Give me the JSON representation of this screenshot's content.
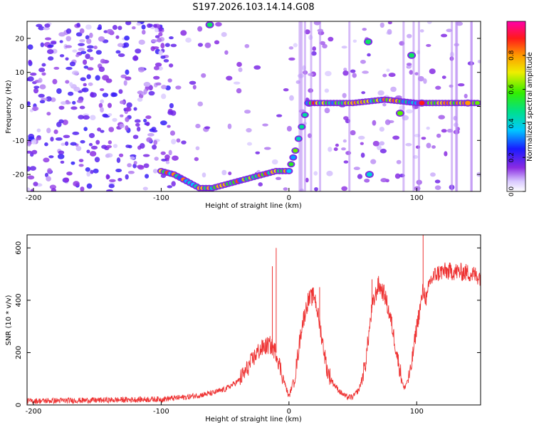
{
  "figure": {
    "title": "S197.2026.103.14.14.G08"
  },
  "chart_data": [
    {
      "type": "heatmap",
      "title": "S197.2026.103.14.14.G08",
      "xlabel": "Height of straight line (km)",
      "ylabel": "Frequency (Hz)",
      "xlim": [
        -205,
        150
      ],
      "ylim": [
        -25,
        25
      ],
      "xticks": [
        -200,
        -100,
        0,
        100
      ],
      "yticks": [
        -20,
        -10,
        0,
        10,
        20
      ],
      "colorbar": {
        "label": "Normalized spectral amplitude",
        "range": [
          0,
          1
        ],
        "ticks": [
          0.0,
          0.2,
          0.4,
          0.6,
          0.8
        ],
        "colormap": "rainbow (white → violet → blue → cyan → green → yellow → orange → red → magenta)"
      },
      "background": "noise speckle, stronger for heights below -90 km, sparse between -85 and 0 km",
      "ridge_frequency": [
        {
          "x": -100,
          "y": -19
        },
        {
          "x": -90,
          "y": -20
        },
        {
          "x": -80,
          "y": -22
        },
        {
          "x": -70,
          "y": -24
        },
        {
          "x": -60,
          "y": -24
        },
        {
          "x": -50,
          "y": -23
        },
        {
          "x": -40,
          "y": -22
        },
        {
          "x": -30,
          "y": -21
        },
        {
          "x": -20,
          "y": -20
        },
        {
          "x": -10,
          "y": -19
        },
        {
          "x": 0,
          "y": -19
        },
        {
          "x": 5,
          "y": -13
        },
        {
          "x": 15,
          "y": 1
        },
        {
          "x": 30,
          "y": 1
        },
        {
          "x": 50,
          "y": 1
        },
        {
          "x": 75,
          "y": 2
        },
        {
          "x": 100,
          "y": 1
        },
        {
          "x": 150,
          "y": 1
        }
      ],
      "hot_spots": [
        {
          "x": -62,
          "y": 24,
          "amp": 0.5
        },
        {
          "x": 62,
          "y": 19,
          "amp": 0.5
        },
        {
          "x": 63,
          "y": -20,
          "amp": 0.4
        },
        {
          "x": 87,
          "y": -2,
          "amp": 0.6
        },
        {
          "x": 96,
          "y": 15,
          "amp": 0.5
        },
        {
          "x": 104,
          "y": 1,
          "amp": 0.9
        },
        {
          "x": 140,
          "y": 1,
          "amp": 0.8
        }
      ]
    },
    {
      "type": "line",
      "xlabel": "Height of straight line (km)",
      "ylabel": "SNR (10 * v/v)",
      "xlim": [
        -205,
        150
      ],
      "ylim": [
        0,
        650
      ],
      "xticks": [
        -200,
        -100,
        0,
        100
      ],
      "yticks": [
        0,
        200,
        400,
        600
      ],
      "series": [
        {
          "color": "#ee3333",
          "noise": "high-frequency jitter about ±15 around the trend, with spikes",
          "x": [
            -205,
            -150,
            -100,
            -80,
            -60,
            -50,
            -40,
            -35,
            -30,
            -25,
            -20,
            -15,
            -10,
            -5,
            0,
            5,
            10,
            15,
            20,
            25,
            30,
            35,
            40,
            45,
            50,
            55,
            60,
            62,
            65,
            70,
            75,
            80,
            85,
            90,
            95,
            100,
            103,
            105,
            108,
            110,
            115,
            120,
            130,
            140,
            150
          ],
          "y": [
            15,
            18,
            22,
            30,
            45,
            60,
            90,
            120,
            160,
            200,
            220,
            230,
            200,
            110,
            30,
            120,
            300,
            400,
            420,
            280,
            130,
            80,
            50,
            30,
            30,
            60,
            160,
            250,
            370,
            460,
            420,
            320,
            180,
            60,
            120,
            300,
            380,
            440,
            400,
            470,
            500,
            510,
            510,
            505,
            490
          ]
        }
      ],
      "spikes": [
        {
          "x": -10,
          "y": 600
        },
        {
          "x": -13,
          "y": 530
        },
        {
          "x": 105,
          "y": 650
        },
        {
          "x": 65,
          "y": 480
        },
        {
          "x": 24,
          "y": 450
        }
      ]
    }
  ]
}
